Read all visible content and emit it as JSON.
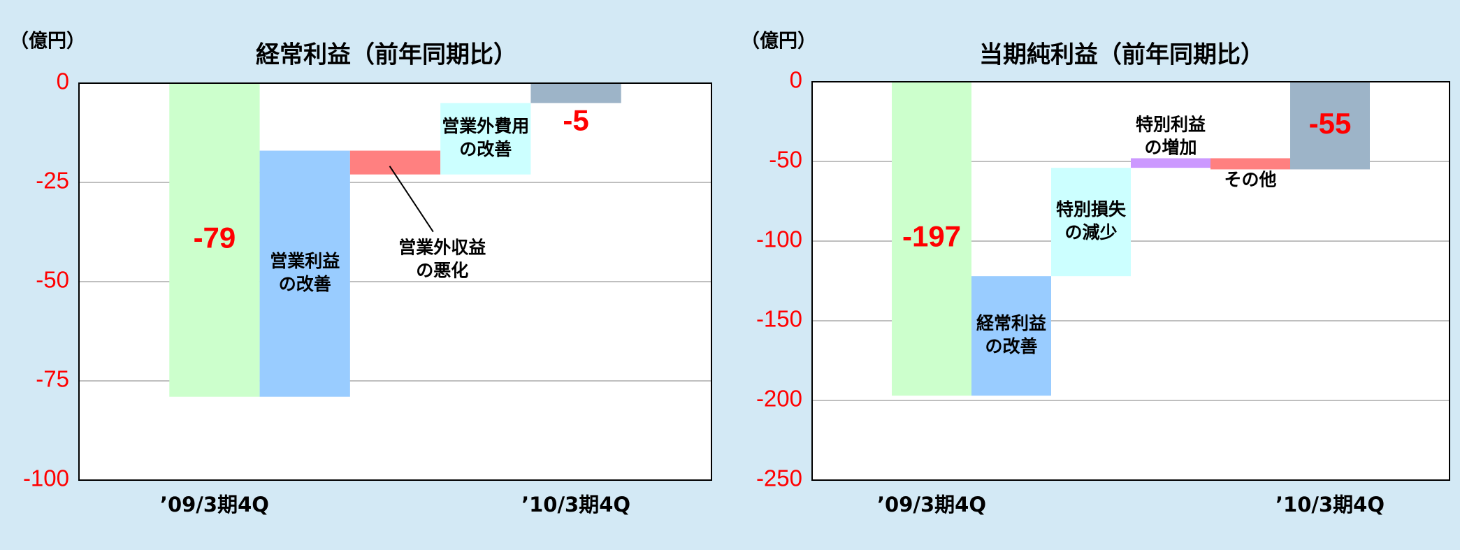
{
  "chart_data": [
    {
      "type": "waterfall",
      "title": "経常利益（前年同期比）",
      "unit_label": "（億円）",
      "categories": [
        "’09/3期4Q",
        [
          "営業利益",
          "の改善"
        ],
        [
          "営業外収益",
          "の悪化"
        ],
        [
          "営業外費用",
          "の改善"
        ],
        "’10/3期4Q"
      ],
      "values": [
        -79,
        62,
        -6,
        18,
        -5
      ],
      "totals": [
        true,
        false,
        false,
        false,
        true
      ],
      "colors": [
        "#ccffcc",
        "#99ccff",
        "#ff8080",
        "#ccffff",
        "#9db4c8"
      ],
      "ylim": [
        -100,
        0
      ],
      "yticks": [
        0,
        -25,
        -50,
        -75,
        -100
      ],
      "grid": true
    },
    {
      "type": "waterfall",
      "title": "当期純利益（前年同期比）",
      "unit_label": "（億円）",
      "categories": [
        "’09/3期4Q",
        [
          "経常利益",
          "の改善"
        ],
        [
          "特別損失",
          "の減少"
        ],
        [
          "特別利益",
          "の増加"
        ],
        "その他",
        "’10/3期4Q"
      ],
      "values": [
        -197,
        75,
        68,
        6,
        -7,
        -55
      ],
      "totals": [
        true,
        false,
        false,
        false,
        false,
        true
      ],
      "colors": [
        "#ccffcc",
        "#99ccff",
        "#ccffff",
        "#cc99ff",
        "#ff8080",
        "#9db4c8"
      ],
      "ylim": [
        -250,
        0
      ],
      "yticks": [
        0,
        -50,
        -100,
        -150,
        -200,
        -250
      ],
      "grid": true
    }
  ]
}
